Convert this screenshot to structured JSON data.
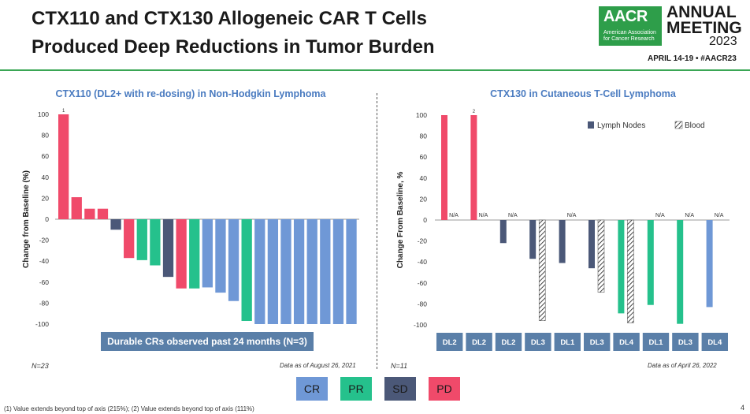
{
  "title_line1": "CTX110 and CTX130 Allogeneic CAR T Cells",
  "title_line2": "Produced Deep Reductions in Tumor Burden",
  "logo": {
    "brand": "AACR",
    "brand_sub_line1": "American Association",
    "brand_sub_line2": "for Cancer Research",
    "annual": "ANNUAL",
    "meeting": "MEETING",
    "year": "2023",
    "dates": "APRIL 14-19 • #AACR23"
  },
  "colors": {
    "CR": "#6f98d6",
    "PR": "#25c18c",
    "SD": "#4b5878",
    "PD": "#f04a6a",
    "accent_green": "#3aa655",
    "banner": "#5a7fa8"
  },
  "left_note": {
    "n": "N=23",
    "asof": "Data as of August 26, 2021",
    "banner": "Durable CRs observed past 24 months (N=3)"
  },
  "right_note": {
    "n": "N=11",
    "asof": "Data as of April 26, 2022"
  },
  "bottom_legend": [
    "CR",
    "PR",
    "SD",
    "PD"
  ],
  "footnote": "(1) Value extends beyond top of axis (215%); (2) Value extends beyond top of axis (111%)",
  "page_number": "4",
  "chart_data": [
    {
      "type": "bar",
      "title": "CTX110 (DL2+ with re-dosing) in Non-Hodgkin Lymphoma",
      "xlabel": "",
      "ylabel": "Change from Baseline (%)",
      "ylim": [
        -100,
        100
      ],
      "yticks": [
        100,
        80,
        60,
        40,
        20,
        0,
        -20,
        -40,
        -60,
        -80,
        -100
      ],
      "values": [
        100,
        21,
        10,
        10,
        -10,
        -37,
        -39,
        -44,
        -55,
        -66,
        -66,
        -65,
        -70,
        -78,
        -97,
        -100,
        -100,
        -100,
        -100,
        -100,
        -100,
        -100,
        -100
      ],
      "categories": [
        "PD",
        "PD",
        "PD",
        "PD",
        "SD",
        "PD",
        "PR",
        "PR",
        "SD",
        "PD",
        "PR",
        "CR",
        "CR",
        "CR",
        "PR",
        "CR",
        "CR",
        "CR",
        "CR",
        "CR",
        "CR",
        "CR",
        "CR"
      ],
      "annotations": [
        {
          "bar": 0,
          "text": "1"
        }
      ]
    },
    {
      "type": "bar",
      "title": "CTX130 in Cutaneous T-Cell Lymphoma",
      "xlabel": "",
      "ylabel": "Change From Baseline, %",
      "ylim": [
        -100,
        100
      ],
      "yticks": [
        100,
        80,
        60,
        40,
        20,
        0,
        -20,
        -40,
        -60,
        -80,
        -100
      ],
      "legend": [
        "Lymph Nodes",
        "Blood"
      ],
      "legend_position": "top-right",
      "groups": [
        {
          "dose": "DL2",
          "response": "PD",
          "lymph_nodes": 100,
          "blood": "N/A"
        },
        {
          "dose": "DL2",
          "response": "PD",
          "lymph_nodes": 100,
          "blood": "N/A"
        },
        {
          "dose": "DL2",
          "response": "SD",
          "lymph_nodes": -22,
          "blood": "N/A"
        },
        {
          "dose": "DL3",
          "response": "SD",
          "lymph_nodes": -37,
          "blood": -96
        },
        {
          "dose": "DL1",
          "response": "SD",
          "lymph_nodes": -41,
          "blood": "N/A"
        },
        {
          "dose": "DL3",
          "response": "SD",
          "lymph_nodes": -46,
          "blood": -69
        },
        {
          "dose": "DL4",
          "response": "PR",
          "lymph_nodes": -89,
          "blood": -98
        },
        {
          "dose": "DL1",
          "response": "PR",
          "lymph_nodes": -81,
          "blood": "N/A"
        },
        {
          "dose": "DL3",
          "response": "PR",
          "lymph_nodes": -99,
          "blood": "N/A"
        },
        {
          "dose": "DL4",
          "response": "CR",
          "lymph_nodes": -83,
          "blood": "N/A"
        }
      ],
      "annotations": [
        {
          "group": 1,
          "text": "2"
        }
      ]
    }
  ]
}
